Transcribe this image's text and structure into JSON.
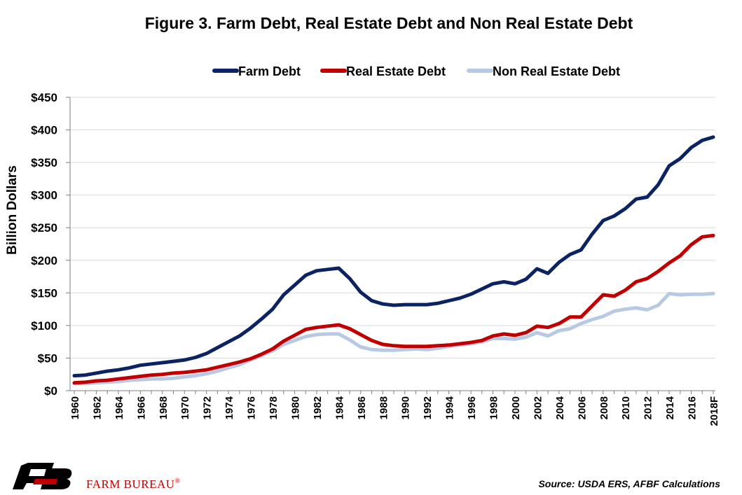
{
  "colors": {
    "farm_debt": "#0b2263",
    "real_estate_debt": "#c00000",
    "non_real_estate_debt": "#b8c9e3",
    "gridline": "#d9d9d9",
    "logo_mark": "#000000",
    "logo_red": "#c00000"
  },
  "footer": {
    "brand_name": "FARM BUREAU",
    "registered_mark": "®",
    "source": "Source: USDA ERS, AFBF Calculations",
    "logo_icon": "farm-bureau-logo-icon"
  },
  "chart_data": {
    "type": "line",
    "title": "Figure 3. Farm Debt, Real Estate Debt and Non Real Estate Debt",
    "ylabel": "Billion Dollars",
    "xlabel": "",
    "ylim": [
      0,
      450
    ],
    "y_ticks": [
      "$0",
      "$50",
      "$100",
      "$150",
      "$200",
      "$250",
      "$300",
      "$350",
      "$400",
      "$450"
    ],
    "grid": true,
    "legend_position": "top",
    "x": [
      "1960",
      "1961",
      "1962",
      "1963",
      "1964",
      "1965",
      "1966",
      "1967",
      "1968",
      "1969",
      "1970",
      "1971",
      "1972",
      "1973",
      "1974",
      "1975",
      "1976",
      "1977",
      "1978",
      "1979",
      "1980",
      "1981",
      "1982",
      "1983",
      "1984",
      "1985",
      "1986",
      "1987",
      "1988",
      "1989",
      "1990",
      "1991",
      "1992",
      "1993",
      "1994",
      "1995",
      "1996",
      "1997",
      "1998",
      "1999",
      "2000",
      "2001",
      "2002",
      "2003",
      "2004",
      "2005",
      "2006",
      "2007",
      "2008",
      "2009",
      "2010",
      "2011",
      "2012",
      "2013",
      "2014",
      "2015",
      "2016",
      "2017",
      "2018F"
    ],
    "x_tick_labels": [
      "1960",
      "1962",
      "1964",
      "1966",
      "1968",
      "1970",
      "1972",
      "1974",
      "1976",
      "1978",
      "1980",
      "1982",
      "1984",
      "1986",
      "1988",
      "1990",
      "1992",
      "1994",
      "1996",
      "1998",
      "2000",
      "2002",
      "2004",
      "2006",
      "2008",
      "2010",
      "2012",
      "2014",
      "2016",
      "2018F"
    ],
    "series": [
      {
        "name": "Farm Debt",
        "values": [
          23,
          24,
          27,
          30,
          32,
          35,
          39,
          41,
          43,
          45,
          47,
          51,
          57,
          66,
          75,
          84,
          96,
          110,
          125,
          147,
          162,
          177,
          184,
          186,
          188,
          172,
          151,
          138,
          133,
          131,
          132,
          132,
          132,
          134,
          138,
          142,
          148,
          156,
          164,
          167,
          164,
          171,
          187,
          180,
          197,
          209,
          216,
          240,
          261,
          268,
          279,
          294,
          297,
          316,
          345,
          356,
          373,
          384,
          389
        ]
      },
      {
        "name": "Real Estate Debt",
        "values": [
          12,
          13,
          15,
          16,
          18,
          20,
          22,
          24,
          25,
          27,
          28,
          30,
          32,
          36,
          40,
          44,
          49,
          56,
          64,
          76,
          85,
          94,
          97,
          99,
          101,
          95,
          86,
          77,
          71,
          69,
          68,
          68,
          68,
          69,
          70,
          72,
          74,
          77,
          84,
          87,
          85,
          89,
          99,
          97,
          103,
          113,
          113,
          130,
          147,
          145,
          154,
          167,
          172,
          183,
          196,
          207,
          224,
          236,
          238
        ]
      },
      {
        "name": "Non Real Estate Debt",
        "values": [
          11,
          11,
          12,
          13,
          14,
          16,
          17,
          18,
          18,
          19,
          21,
          23,
          26,
          30,
          35,
          40,
          47,
          54,
          61,
          71,
          77,
          83,
          86,
          87,
          87,
          78,
          67,
          63,
          62,
          62,
          63,
          64,
          63,
          65,
          68,
          70,
          72,
          75,
          80,
          80,
          79,
          82,
          89,
          84,
          92,
          95,
          103,
          109,
          114,
          122,
          125,
          127,
          124,
          131,
          149,
          147,
          148,
          148,
          149
        ]
      }
    ]
  }
}
